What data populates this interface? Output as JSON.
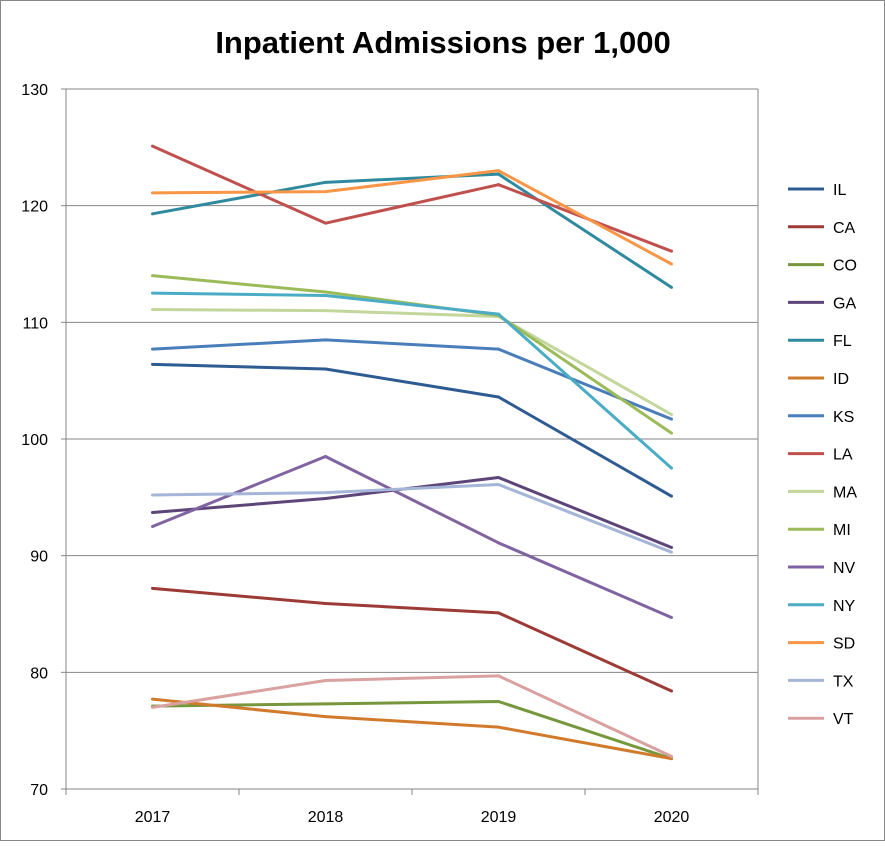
{
  "chart_data": {
    "type": "line",
    "title": "Inpatient Admissions per 1,000",
    "xlabel": "",
    "ylabel": "",
    "categories": [
      "2017",
      "2018",
      "2019",
      "2020"
    ],
    "ylim": [
      70,
      130
    ],
    "yticks": [
      "70",
      "80",
      "90",
      "100",
      "110",
      "120",
      "130"
    ],
    "grid": true,
    "legend_position": "right",
    "series": [
      {
        "name": "IL",
        "color": "#2e5b92",
        "values": [
          106.4,
          106.0,
          103.6,
          95.1
        ]
      },
      {
        "name": "CA",
        "color": "#9c3a36",
        "values": [
          87.2,
          85.9,
          85.1,
          78.4
        ]
      },
      {
        "name": "CO",
        "color": "#77973d",
        "values": [
          77.1,
          77.3,
          77.5,
          72.6
        ]
      },
      {
        "name": "GA",
        "color": "#5d4479",
        "values": [
          93.7,
          94.9,
          96.7,
          90.7
        ]
      },
      {
        "name": "FL",
        "color": "#2f8a9e",
        "values": [
          119.3,
          122.0,
          122.7,
          113.0
        ]
      },
      {
        "name": "ID",
        "color": "#d27a2c",
        "values": [
          77.7,
          76.2,
          75.3,
          72.6
        ]
      },
      {
        "name": "KS",
        "color": "#4a7ebb",
        "values": [
          107.7,
          108.5,
          107.7,
          101.7
        ]
      },
      {
        "name": "LA",
        "color": "#c0504d",
        "values": [
          125.1,
          118.5,
          121.8,
          116.1
        ]
      },
      {
        "name": "MA",
        "color": "#c3d69b",
        "values": [
          111.1,
          111.0,
          110.5,
          102.1
        ]
      },
      {
        "name": "MI",
        "color": "#9bbb59",
        "values": [
          114.0,
          112.6,
          110.6,
          100.5
        ]
      },
      {
        "name": "NV",
        "color": "#8064a2",
        "values": [
          92.5,
          98.5,
          91.1,
          84.7
        ]
      },
      {
        "name": "NY",
        "color": "#4bacc6",
        "values": [
          112.5,
          112.3,
          110.7,
          97.5
        ]
      },
      {
        "name": "SD",
        "color": "#f79646",
        "values": [
          121.1,
          121.2,
          123.0,
          115.0
        ]
      },
      {
        "name": "TX",
        "color": "#a5b5d7",
        "values": [
          95.2,
          95.4,
          96.1,
          90.3
        ]
      },
      {
        "name": "VT",
        "color": "#d9a1a0",
        "values": [
          77.0,
          79.3,
          79.7,
          72.8
        ]
      }
    ]
  }
}
